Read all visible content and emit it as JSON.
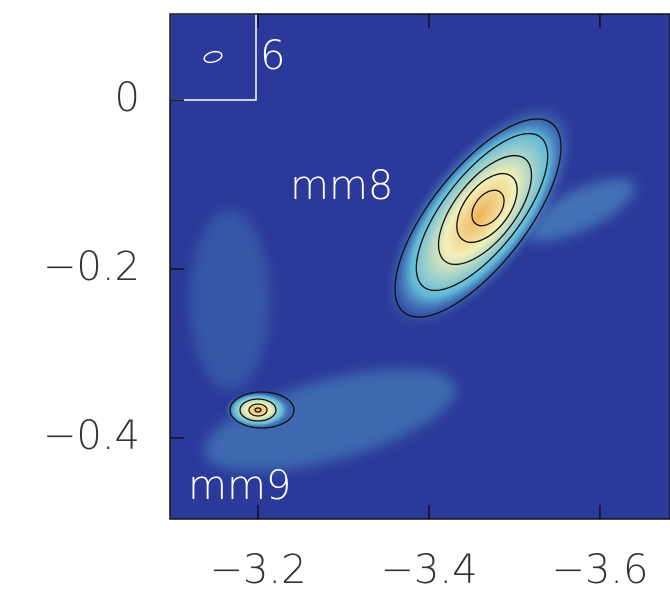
{
  "chart_data": {
    "type": "image",
    "annotations": [
      "mm8",
      "mm9",
      "6"
    ],
    "xlim": [
      -3.097,
      -3.682
    ],
    "ylim": [
      -0.496,
      0.102
    ],
    "xticks": [
      {
        "value": -3.2,
        "label": "−3.2"
      },
      {
        "value": -3.4,
        "label": "−3.4"
      },
      {
        "value": -3.6,
        "label": "−3.6"
      }
    ],
    "yticks": [
      0,
      {
        "value": -0.2,
        "label": "−0.2"
      },
      {
        "value": -0.4,
        "label": "−0.4"
      }
    ],
    "colormap": [
      "#2b3a9a",
      "#5fb8d8",
      "#f3f0b8",
      "#f2b25a"
    ]
  }
}
